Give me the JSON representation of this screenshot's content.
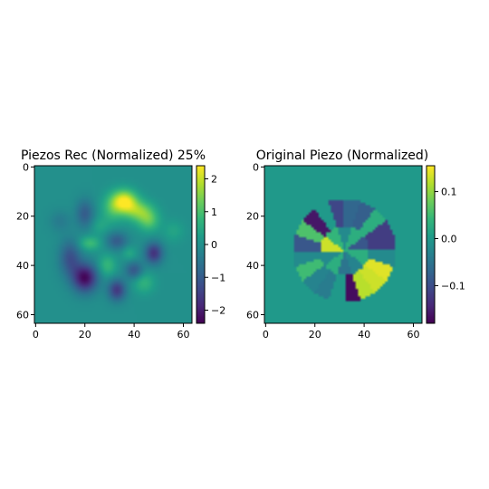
{
  "chart_data": [
    {
      "type": "heatmap",
      "title": "Piezos Rec (Normalized) 25%",
      "x_ticks": [
        0,
        20,
        40,
        60
      ],
      "y_ticks": [
        0,
        20,
        40,
        60
      ],
      "xlim": [
        -0.5,
        63.5
      ],
      "ylim": [
        63.5,
        -0.5
      ],
      "colorbar": {
        "range": [
          -2.4,
          2.4
        ],
        "ticks": [
          -2,
          -1,
          0,
          1,
          2
        ],
        "tick_labels": [
          "−2",
          "−1",
          "0",
          "1",
          "2"
        ]
      },
      "colormap": "viridis",
      "features": [
        {
          "x": 36,
          "y": 14,
          "sx": 3.5,
          "sy": 3.2,
          "v": 2.4
        },
        {
          "x": 42,
          "y": 18,
          "sx": 4,
          "sy": 3,
          "v": 1.4
        },
        {
          "x": 46,
          "y": 22,
          "sx": 3,
          "sy": 3,
          "v": 1.0
        },
        {
          "x": 31,
          "y": 17,
          "sx": 3,
          "sy": 4,
          "v": 0.8
        },
        {
          "x": 20,
          "y": 45,
          "sx": 3.5,
          "sy": 4,
          "v": -2.3
        },
        {
          "x": 14,
          "y": 37,
          "sx": 3,
          "sy": 5,
          "v": -1.2
        },
        {
          "x": 33,
          "y": 50,
          "sx": 2.5,
          "sy": 3,
          "v": -1.6
        },
        {
          "x": 48,
          "y": 35,
          "sx": 2.5,
          "sy": 3,
          "v": -1.7
        },
        {
          "x": 20,
          "y": 19,
          "sx": 2.5,
          "sy": 4,
          "v": -1.0
        },
        {
          "x": 33,
          "y": 30,
          "sx": 3,
          "sy": 2.5,
          "v": -1.0
        },
        {
          "x": 40,
          "y": 42,
          "sx": 2.5,
          "sy": 2.5,
          "v": -1.1
        },
        {
          "x": 22,
          "y": 31,
          "sx": 3,
          "sy": 2,
          "v": 0.9
        },
        {
          "x": 29,
          "y": 40,
          "sx": 2.5,
          "sy": 3,
          "v": 0.8
        },
        {
          "x": 44,
          "y": 47,
          "sx": 3,
          "sy": 3,
          "v": 0.7
        },
        {
          "x": 38,
          "y": 35,
          "sx": 2,
          "sy": 2,
          "v": 0.5
        },
        {
          "x": 26,
          "y": 24,
          "sx": 2.5,
          "sy": 2.5,
          "v": 0.4
        },
        {
          "x": 10,
          "y": 22,
          "sx": 3,
          "sy": 3,
          "v": -0.4
        },
        {
          "x": 56,
          "y": 26,
          "sx": 3,
          "sy": 3,
          "v": 0.4
        }
      ]
    },
    {
      "type": "heatmap",
      "title": "Original Piezo (Normalized)",
      "x_ticks": [
        0,
        20,
        40,
        60
      ],
      "y_ticks": [
        0,
        20,
        40,
        60
      ],
      "xlim": [
        -0.5,
        63.5
      ],
      "ylim": [
        63.5,
        -0.5
      ],
      "colorbar": {
        "range": [
          -0.18,
          0.155
        ],
        "ticks": [
          -0.1,
          0.0,
          0.1
        ],
        "tick_labels": [
          "−0.1",
          "0.0",
          "0.1"
        ]
      },
      "colormap": "viridis",
      "background": 0.0,
      "center": [
        32,
        34
      ],
      "radii": [
        10,
        21
      ],
      "inner_ring": [
        0.03,
        -0.03,
        -0.05,
        0.03,
        -0.02,
        0.13,
        0.04,
        -0.02,
        0.03,
        -0.09
      ],
      "outer_ring": [
        -0.02,
        0.14,
        0.13,
        0.12,
        -0.17,
        0.0,
        -0.04,
        -0.03,
        0.05,
        -0.02,
        -0.09,
        0.06,
        -0.16,
        0.0,
        -0.11,
        -0.07,
        -0.08,
        0.03,
        -0.12,
        -0.12
      ]
    }
  ]
}
